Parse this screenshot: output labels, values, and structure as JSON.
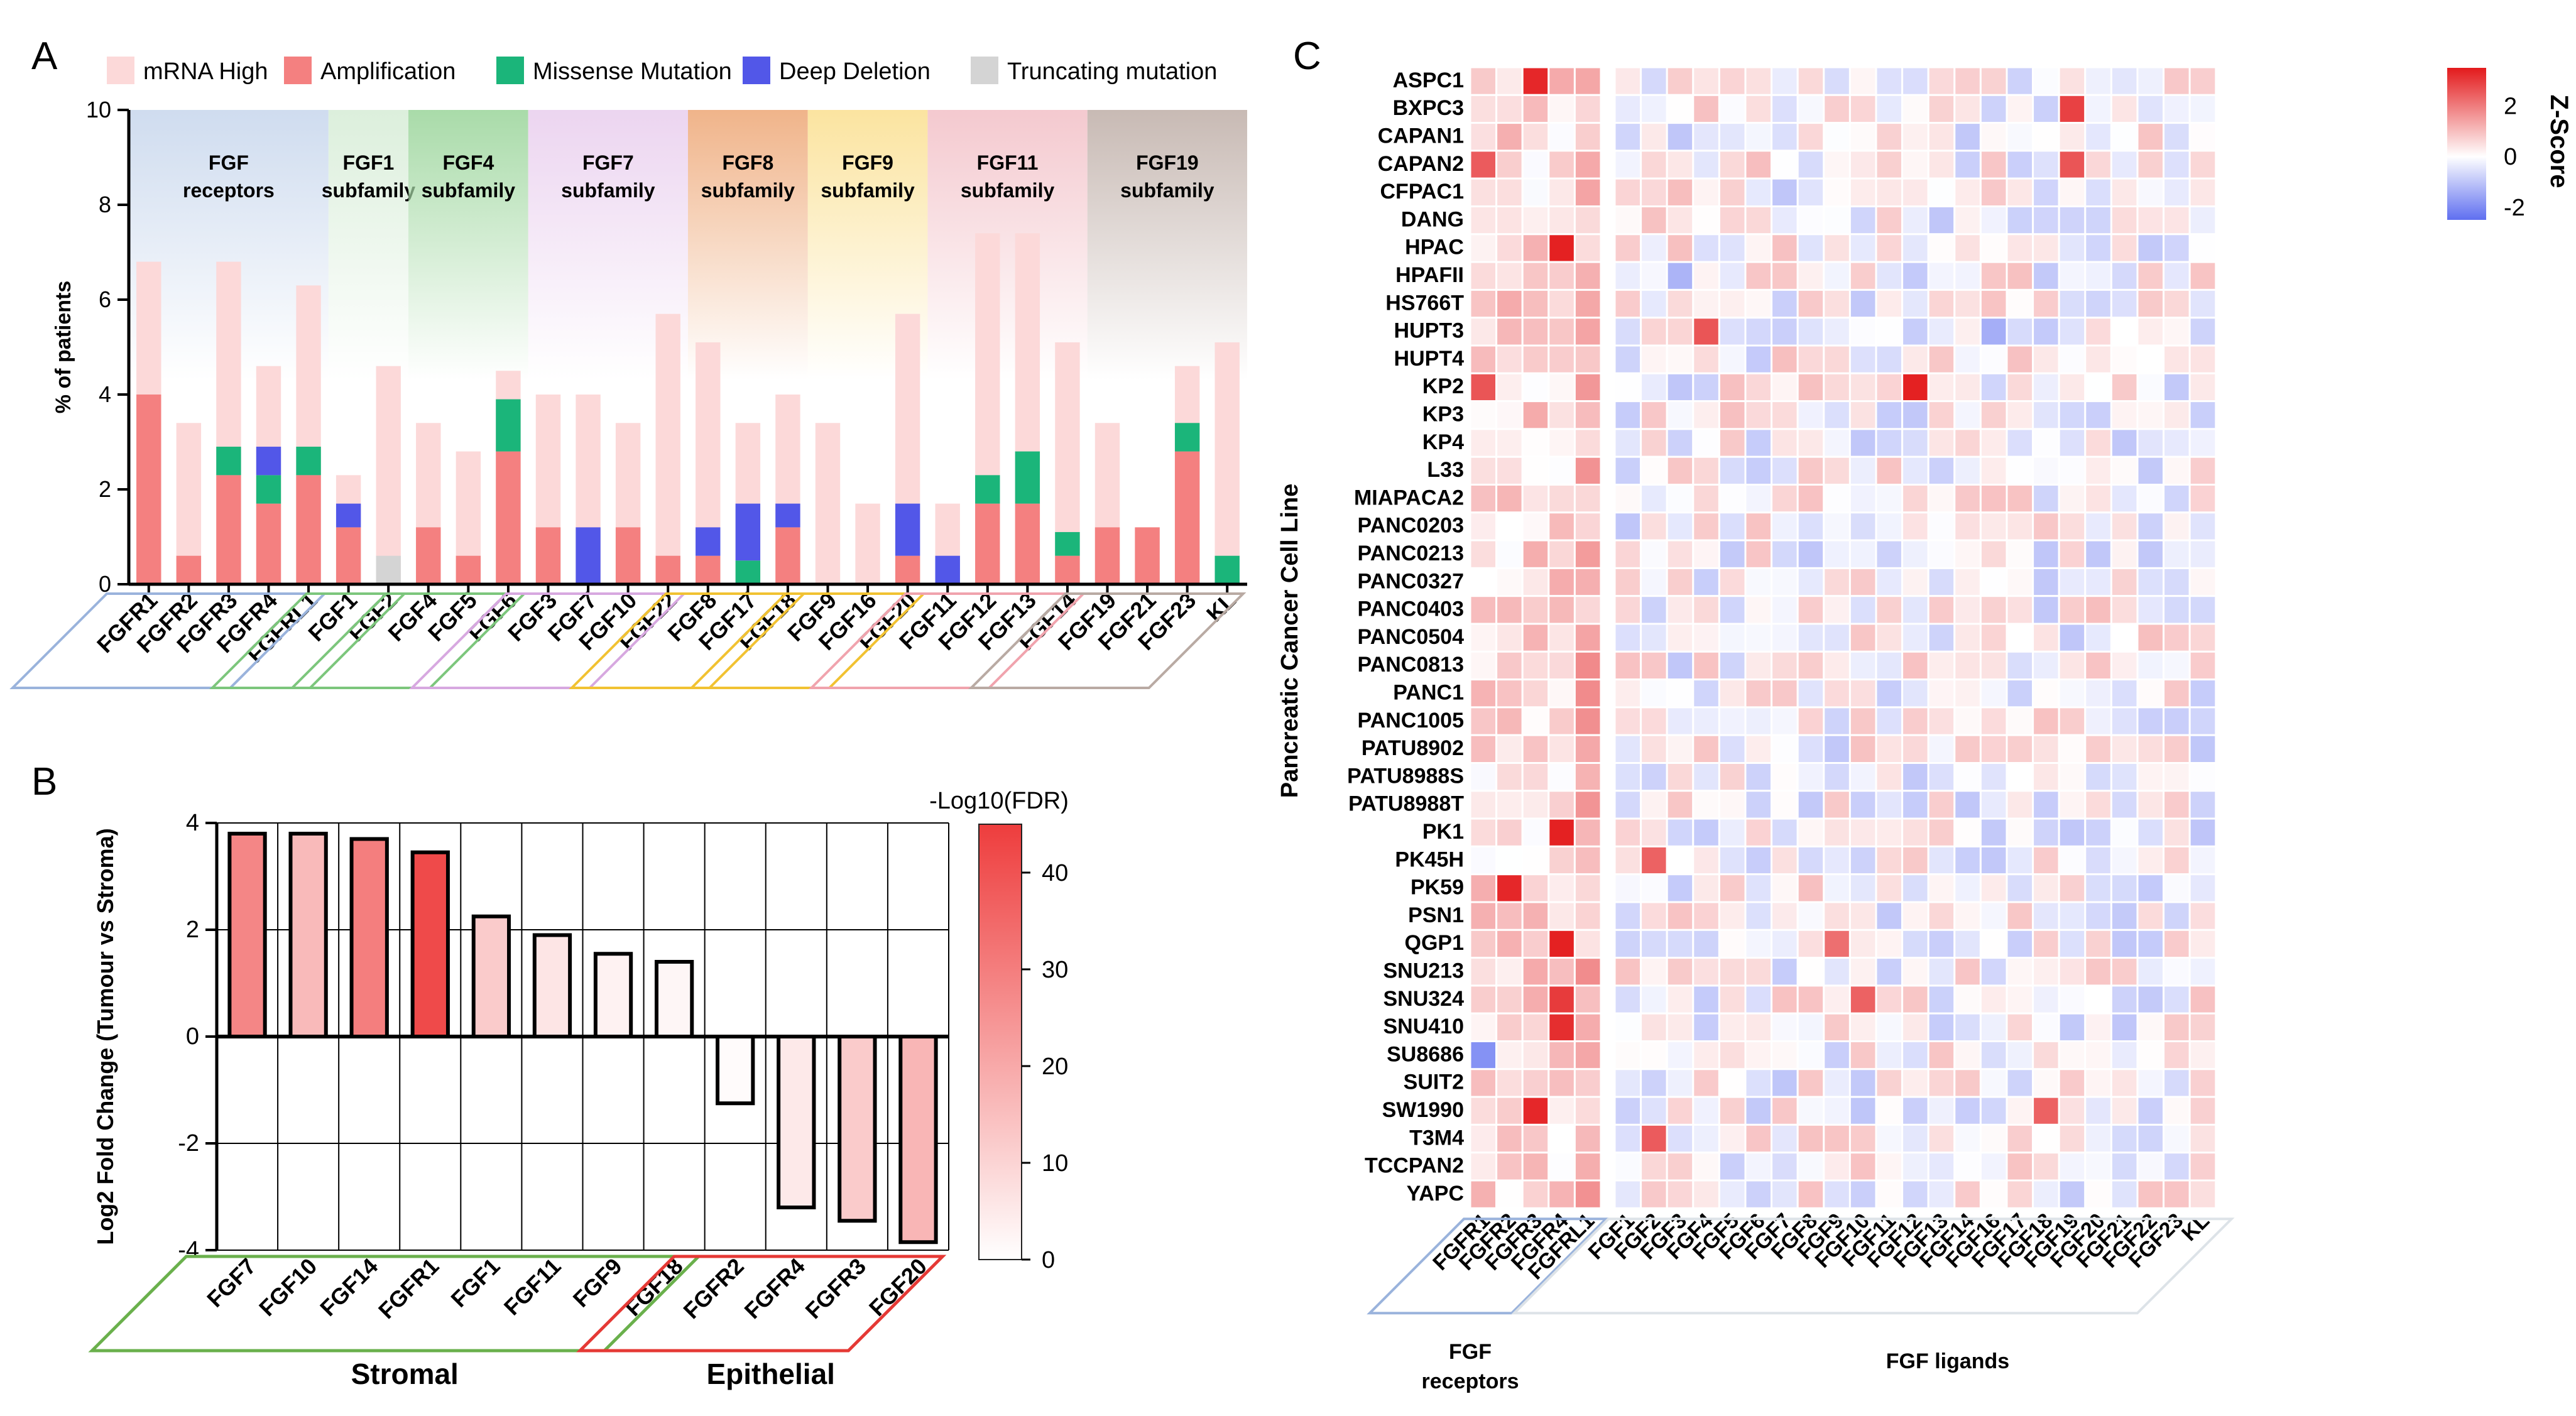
{
  "chart_data": [
    {
      "panel": "A",
      "type": "bar",
      "stacked": true,
      "ylabel": "% of patients",
      "ylim": [
        0,
        10
      ],
      "yticks": [
        "0",
        "2",
        "4",
        "6",
        "8",
        "10"
      ],
      "legend": {
        "position": "top",
        "entries": [
          "mRNA High",
          "Amplification",
          "Missense Mutation",
          "Deep Deletion",
          "Truncating mutation"
        ]
      },
      "categories": [
        "FGFR1",
        "FGFR2",
        "FGFR3",
        "FGFR4",
        "FGFRL1",
        "FGF1",
        "FGF2",
        "FGF4",
        "FGF5",
        "FGF6",
        "FGF3",
        "FGF7",
        "FGF10",
        "FGF22",
        "FGF8",
        "FGF17",
        "FGF18",
        "FGF9",
        "FGF16",
        "FGF20",
        "FGF11",
        "FGF12",
        "FGF13",
        "FGF14",
        "FGF19",
        "FGF21",
        "FGF23",
        "KL"
      ],
      "series": [
        {
          "name": "Amplification",
          "color": "#f48080",
          "values": [
            4.0,
            0.6,
            2.3,
            1.7,
            2.3,
            1.2,
            0,
            1.2,
            0.6,
            2.8,
            1.2,
            0,
            1.2,
            0.6,
            0.6,
            0,
            1.2,
            0,
            0,
            0.6,
            0,
            1.7,
            1.7,
            0.6,
            1.2,
            1.2,
            2.8,
            0
          ]
        },
        {
          "name": "Missense Mutation",
          "color": "#1bb57a",
          "values": [
            0,
            0,
            0.6,
            0.6,
            0.6,
            0,
            0,
            0,
            0,
            1.1,
            0,
            0,
            0,
            0,
            0,
            0.5,
            0,
            0,
            0,
            0,
            0,
            0.6,
            1.1,
            0.5,
            0,
            0,
            0.6,
            0.6
          ]
        },
        {
          "name": "Deep Deletion",
          "color": "#5257e8",
          "values": [
            0,
            0,
            0,
            0.6,
            0,
            0.5,
            0,
            0,
            0,
            0,
            0,
            1.2,
            0,
            0,
            0.6,
            1.2,
            0.5,
            0,
            0,
            1.1,
            0.6,
            0,
            0,
            0,
            0,
            0,
            0,
            0
          ]
        },
        {
          "name": "Truncating mutation",
          "color": "#d4d4d4",
          "values": [
            0,
            0,
            0,
            0,
            0,
            0,
            0.6,
            0,
            0,
            0,
            0,
            0,
            0,
            0,
            0,
            0,
            0,
            0,
            0,
            0,
            0,
            0,
            0,
            0,
            0,
            0,
            0,
            0
          ]
        },
        {
          "name": "mRNA High",
          "color": "#fcd9d9",
          "totals": [
            6.8,
            3.4,
            6.8,
            4.6,
            6.3,
            2.3,
            4.6,
            3.4,
            2.8,
            4.5,
            4.0,
            4.0,
            3.4,
            5.7,
            5.1,
            3.4,
            4.0,
            3.4,
            1.7,
            5.7,
            1.7,
            7.4,
            7.4,
            5.1,
            3.4,
            1.2,
            4.6,
            5.1
          ]
        }
      ],
      "families": [
        {
          "line1": "FGF",
          "line2": "receptors",
          "color": "#cfdcef",
          "start": 0,
          "end": 4
        },
        {
          "line1": "FGF1",
          "line2": "subfamily",
          "color": "#dcefdc",
          "start": 5,
          "end": 6
        },
        {
          "line1": "FGF4",
          "line2": "subfamily",
          "color": "#a9dba9",
          "start": 7,
          "end": 9
        },
        {
          "line1": "FGF7",
          "line2": "subfamily",
          "color": "#ecd5f0",
          "start": 10,
          "end": 13
        },
        {
          "line1": "FGF8",
          "line2": "subfamily",
          "color": "#f0b48a",
          "start": 14,
          "end": 16
        },
        {
          "line1": "FGF9",
          "line2": "subfamily",
          "color": "#fbe4a0",
          "start": 17,
          "end": 19
        },
        {
          "line1": "FGF11",
          "line2": "subfamily",
          "color": "#f4c9cf",
          "start": 20,
          "end": 23
        },
        {
          "line1": "FGF19",
          "line2": "subfamily",
          "color": "#c8bab4",
          "start": 24,
          "end": 27
        }
      ],
      "bracket_colors": [
        "#9ab3dc",
        "#7cc67c",
        "#7cc67c",
        "#d7a8e0",
        "#f1c232",
        "#f1c232",
        "#f0a3ad",
        "#b9aaa3"
      ]
    },
    {
      "panel": "B",
      "type": "bar",
      "ylabel": "Log2 Fold Change (Tumour vs Stroma)",
      "ylim": [
        -4,
        4
      ],
      "yticks": [
        "-4",
        "-2",
        "0",
        "2",
        "4"
      ],
      "categories": [
        "FGF7",
        "FGF10",
        "FGF14",
        "FGFR1",
        "FGF1",
        "FGF11",
        "FGF9",
        "FGF18",
        "FGFR2",
        "FGFR4",
        "FGFR3",
        "FGF20"
      ],
      "values": [
        3.8,
        3.8,
        3.7,
        3.45,
        2.25,
        1.9,
        1.55,
        1.4,
        -1.25,
        -3.2,
        -3.45,
        -3.85
      ],
      "fdr": [
        28,
        16,
        30,
        42,
        12,
        6,
        3,
        2,
        1,
        5,
        12,
        17
      ],
      "colorbar": {
        "title": "-Log10(FDR)",
        "ticks": [
          "0",
          "10",
          "20",
          "30",
          "40"
        ],
        "max": 45,
        "color_low": "#ffffff",
        "color_high": "#ee3d3d"
      },
      "groups": [
        {
          "label": "Stromal",
          "color": "#6ab04c",
          "start": 0,
          "end": 7
        },
        {
          "label": "Epithelial",
          "color": "#e53935",
          "start": 8,
          "end": 11
        }
      ]
    },
    {
      "panel": "C",
      "type": "heatmap",
      "ylabel": "Pancreatic Cancer Cell Line",
      "colorbar": {
        "title": "Z-Score",
        "ticks": [
          "2",
          "0",
          "-2"
        ],
        "range": [
          -2.5,
          3.5
        ]
      },
      "rows": [
        "ASPC1",
        "BXPC3",
        "CAPAN1",
        "CAPAN2",
        "CFPAC1",
        "DANG",
        "HPAC",
        "HPAFII",
        "HS766T",
        "HUPT3",
        "HUPT4",
        "KP2",
        "KP3",
        "KP4",
        "L33",
        "MIAPACA2",
        "PANC0203",
        "PANC0213",
        "PANC0327",
        "PANC0403",
        "PANC0504",
        "PANC0813",
        "PANC1",
        "PANC1005",
        "PATU8902",
        "PATU8988S",
        "PATU8988T",
        "PK1",
        "PK45H",
        "PK59",
        "PSN1",
        "QGP1",
        "SNU213",
        "SNU324",
        "SNU410",
        "SU8686",
        "SUIT2",
        "SW1990",
        "T3M4",
        "TCCPAN2",
        "YAPC"
      ],
      "receptor_cols": [
        "FGFR1",
        "FGFR2",
        "FGFR3",
        "FGFR4",
        "FGFRL1"
      ],
      "ligand_cols": [
        "FGF1",
        "FGF2",
        "FGF3",
        "FGF4",
        "FGF5",
        "FGF6",
        "FGF7",
        "FGF8",
        "FGF9",
        "FGF10",
        "FGF11",
        "FGF12",
        "FGF13",
        "FGF14",
        "FGF16",
        "FGF17",
        "FGF18",
        "FGF19",
        "FGF20",
        "FGF21",
        "FGF22",
        "FGF23",
        "KL"
      ],
      "receptor_label": [
        "FGF",
        "receptors"
      ],
      "ligand_label": "FGF ligands",
      "hot_cells": [
        {
          "row": 0,
          "col": 2,
          "z": 3.3
        },
        {
          "row": 1,
          "col": 22,
          "z": 2.9
        },
        {
          "row": 3,
          "col": 0,
          "z": 2.5
        },
        {
          "row": 3,
          "col": 22,
          "z": 2.6
        },
        {
          "row": 6,
          "col": 3,
          "z": 3.4
        },
        {
          "row": 9,
          "col": 8,
          "z": 2.6
        },
        {
          "row": 11,
          "col": 0,
          "z": 2.6
        },
        {
          "row": 11,
          "col": 16,
          "z": 3.4
        },
        {
          "row": 27,
          "col": 3,
          "z": 3.4
        },
        {
          "row": 28,
          "col": 6,
          "z": 2.4
        },
        {
          "row": 29,
          "col": 1,
          "z": 3.3
        },
        {
          "row": 31,
          "col": 3,
          "z": 3.4
        },
        {
          "row": 33,
          "col": 3,
          "z": 3.0
        },
        {
          "row": 33,
          "col": 14,
          "z": 2.4
        },
        {
          "row": 34,
          "col": 3,
          "z": 3.2
        },
        {
          "row": 35,
          "col": 0,
          "z": -1.9
        },
        {
          "row": 37,
          "col": 2,
          "z": 3.3
        },
        {
          "row": 37,
          "col": 21,
          "z": 2.4
        },
        {
          "row": 38,
          "col": 6,
          "z": 2.5
        },
        {
          "row": 31,
          "col": 13,
          "z": 2.2
        },
        {
          "row": 9,
          "col": 19,
          "z": -1.4
        },
        {
          "row": 7,
          "col": 7,
          "z": -1.3
        }
      ]
    }
  ],
  "panel_labels": [
    "A",
    "B",
    "C"
  ]
}
